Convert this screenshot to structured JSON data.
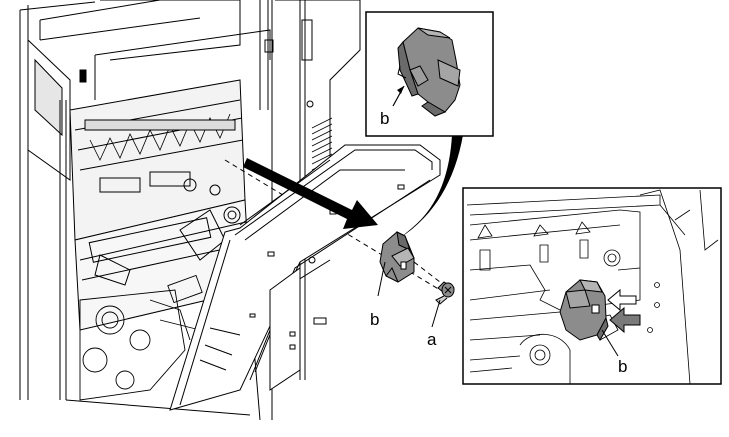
{
  "labels": {
    "inset_top_part": "b",
    "main_part": "b",
    "screw": "a",
    "inset_bottom_part": "b"
  },
  "colors": {
    "line": "#000000",
    "part_gray": "#8c8c8c",
    "part_dark": "#6a6a6a",
    "arrow_gray": "#7a7a7a",
    "background": "#ffffff"
  }
}
